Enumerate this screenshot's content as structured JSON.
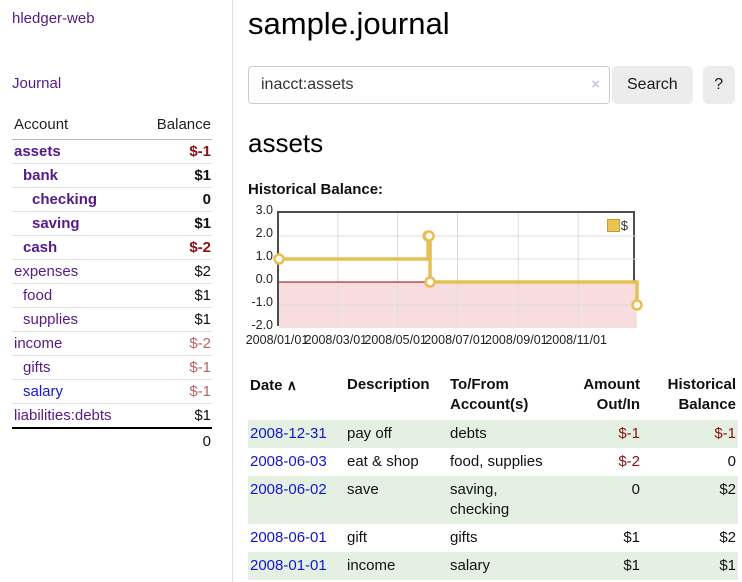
{
  "sidebar": {
    "brand": "hledger-web",
    "journal_link": "Journal",
    "accounts_table": {
      "headers": {
        "account": "Account",
        "balance": "Balance"
      },
      "rows": [
        {
          "name": "assets",
          "depth": 0,
          "bold": true,
          "balance": "$-1",
          "blue": false
        },
        {
          "name": "bank",
          "depth": 1,
          "bold": true,
          "balance": "$1",
          "blue": false
        },
        {
          "name": "checking",
          "depth": 2,
          "bold": true,
          "balance": "0",
          "blue": false
        },
        {
          "name": "saving",
          "depth": 2,
          "bold": true,
          "balance": "$1",
          "blue": false
        },
        {
          "name": "cash",
          "depth": 1,
          "bold": true,
          "balance": "$-2",
          "blue": false
        },
        {
          "name": "expenses",
          "depth": 0,
          "bold": false,
          "balance": "$2",
          "blue": false
        },
        {
          "name": "food",
          "depth": 1,
          "bold": false,
          "balance": "$1",
          "blue": false
        },
        {
          "name": "supplies",
          "depth": 1,
          "bold": false,
          "balance": "$1",
          "blue": false
        },
        {
          "name": "income",
          "depth": 0,
          "bold": false,
          "balance": "$-2",
          "blue": false
        },
        {
          "name": "gifts",
          "depth": 1,
          "bold": false,
          "balance": "$-1",
          "blue": false
        },
        {
          "name": "salary",
          "depth": 1,
          "bold": false,
          "balance": "$-1",
          "blue": true
        },
        {
          "name": "liabilities:debts",
          "depth": 0,
          "bold": false,
          "balance": "$1",
          "blue": false
        }
      ],
      "total": "0"
    }
  },
  "header": {
    "title": "sample.journal"
  },
  "search": {
    "value": "inacct:assets",
    "clear_icon": "×",
    "button_label": "Search",
    "help_label": "?"
  },
  "account_page": {
    "heading": "assets",
    "chart_label": "Historical Balance:"
  },
  "chart_data": {
    "type": "line",
    "step": true,
    "title": "Historical Balance:",
    "legend": [
      {
        "name": "$",
        "color": "#e9c353"
      }
    ],
    "x_range": [
      "2008-01-01",
      "2008-12-31"
    ],
    "ylim": [
      -2,
      3
    ],
    "yticks": [
      "3.0",
      "2.0",
      "1.0",
      "0.0",
      "-1.0",
      "-2.0"
    ],
    "ytick_values": [
      3,
      2,
      1,
      0,
      -1,
      -2
    ],
    "xticks": [
      {
        "date": "2008-01-01",
        "label": "2008/01/01"
      },
      {
        "date": "2008-03-01",
        "label": "2008/03/01"
      },
      {
        "date": "2008-05-01",
        "label": "2008/05/01"
      },
      {
        "date": "2008-07-01",
        "label": "2008/07/01"
      },
      {
        "date": "2008-09-01",
        "label": "2008/09/01"
      },
      {
        "date": "2008-11-01",
        "label": "2008/11/01"
      }
    ],
    "points": [
      {
        "x": "2008-01-01",
        "y": 1
      },
      {
        "x": "2008-06-01",
        "y": 2
      },
      {
        "x": "2008-06-02",
        "y": 2
      },
      {
        "x": "2008-06-03",
        "y": 0
      },
      {
        "x": "2008-12-31",
        "y": -1
      }
    ],
    "negative_region_fill": "#f8dde0",
    "zero_line_color": "#990000",
    "line_color": "#e6c054",
    "grid": true
  },
  "register_table": {
    "headers": {
      "date": "Date",
      "sort_icon": "∧",
      "description": "Description",
      "accounts": "To/From Account(s)",
      "amount": "Amount Out/In",
      "balance": "Historical Balance"
    },
    "rows": [
      {
        "date": "2008-12-31",
        "description": "pay off",
        "accounts": "debts",
        "amount": "$-1",
        "balance": "$-1"
      },
      {
        "date": "2008-06-03",
        "description": "eat & shop",
        "accounts": "food, supplies",
        "amount": "$-2",
        "balance": "0"
      },
      {
        "date": "2008-06-02",
        "description": "save",
        "accounts": "saving, checking",
        "amount": "0",
        "balance": "$2"
      },
      {
        "date": "2008-06-01",
        "description": "gift",
        "accounts": "gifts",
        "amount": "$1",
        "balance": "$2"
      },
      {
        "date": "2008-01-01",
        "description": "income",
        "accounts": "salary",
        "amount": "$1",
        "balance": "$1"
      }
    ]
  },
  "colors": {
    "link_purple": "#551a8b",
    "link_blue": "#1313d2",
    "negative_strong": "#8b1111",
    "negative_soft": "#c16262",
    "row_green": "#e4f1e2",
    "chart_gold": "#e6c054",
    "chart_pink": "#f8dde0",
    "zero_line_red": "#990000"
  }
}
